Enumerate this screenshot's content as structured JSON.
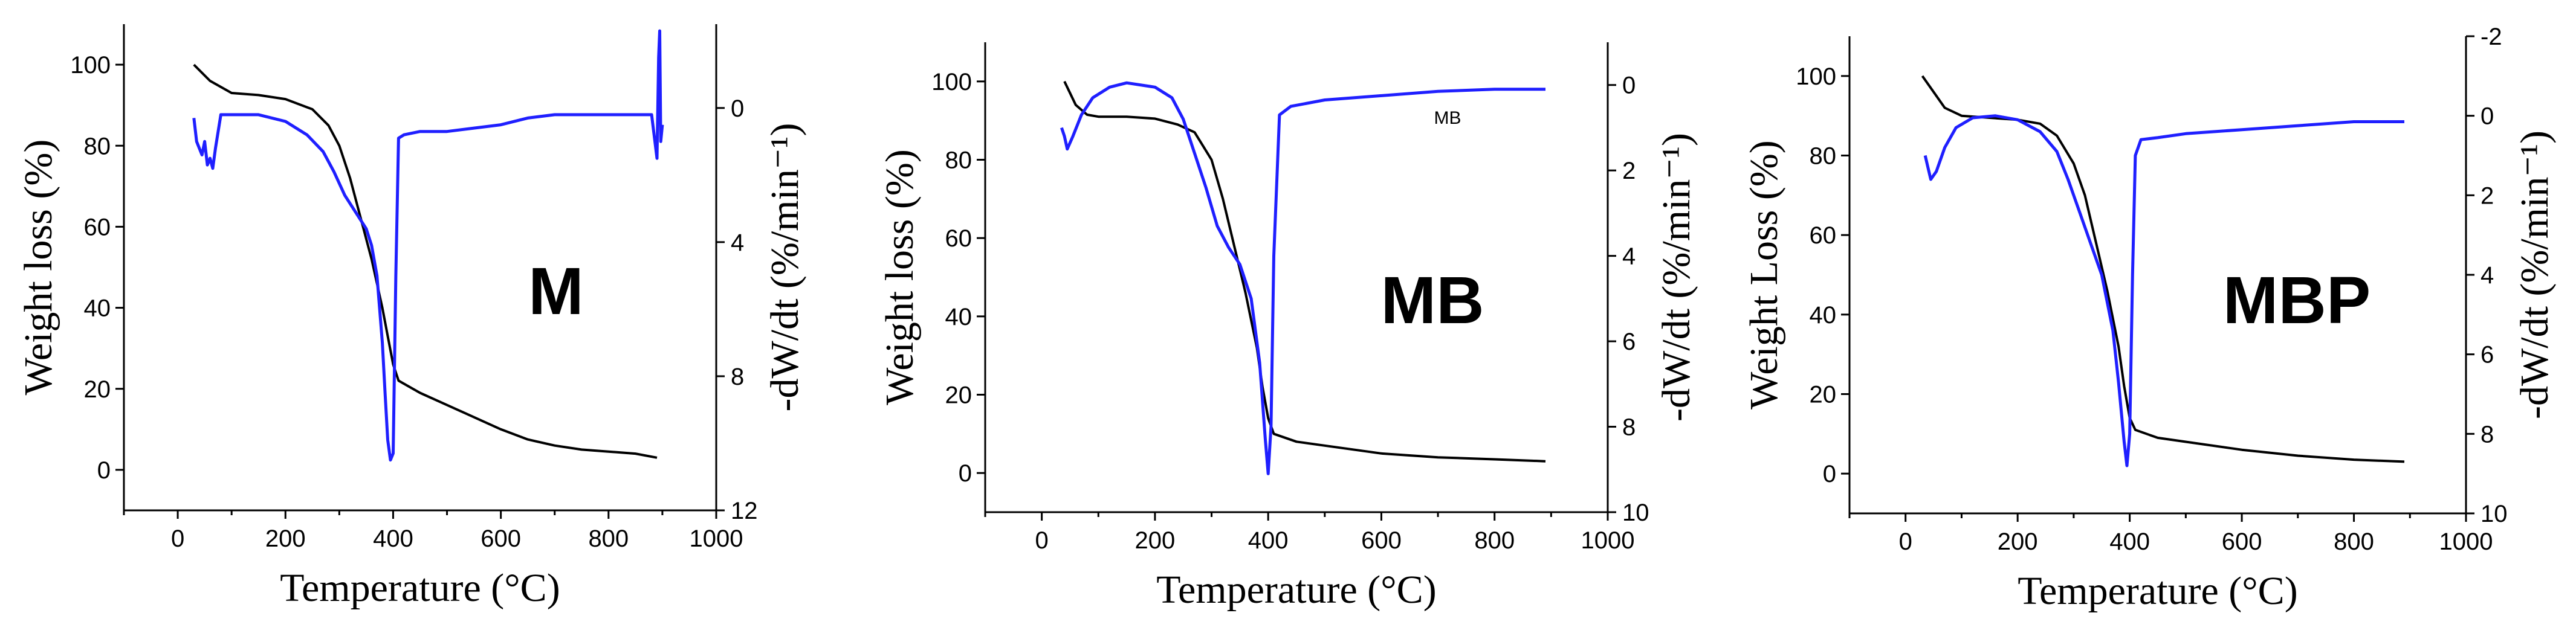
{
  "colors": {
    "weight_curve": "#000000",
    "dtg_curve": "#1f1fff"
  },
  "chart_data": [
    {
      "type": "line",
      "panel_label": "M",
      "annotation": "",
      "xlabel": "Temperature (°C)",
      "ylabel_left": "Weight loss (%)",
      "ylabel_right": "-dW/dt (%/min⁻¹)",
      "xlim": [
        -100,
        1000
      ],
      "ylim_left": [
        -10,
        110
      ],
      "ylim_right": [
        12,
        -2.5
      ],
      "x_ticks": [
        0,
        200,
        400,
        600,
        800,
        1000
      ],
      "x_tick_labels": [
        "0",
        "200",
        "400",
        "600",
        "800",
        "1000"
      ],
      "y_left_ticks": [
        0,
        20,
        40,
        60,
        80,
        100
      ],
      "y_left_tick_labels": [
        "0",
        "20",
        "40",
        "60",
        "80",
        "100"
      ],
      "y_right_ticks": [
        0,
        4,
        8,
        12
      ],
      "y_right_tick_labels": [
        "0",
        "4",
        "8",
        "12"
      ],
      "series": [
        {
          "name": "Weight",
          "axis": "left",
          "x": [
            30,
            60,
            100,
            150,
            200,
            250,
            280,
            300,
            320,
            340,
            360,
            380,
            390,
            400,
            410,
            450,
            500,
            550,
            600,
            650,
            700,
            750,
            800,
            850,
            890
          ],
          "y": [
            100,
            96,
            93,
            92.5,
            91.5,
            89,
            85,
            80,
            72,
            62,
            52,
            40,
            33,
            26,
            22,
            19,
            16,
            13,
            10,
            7.5,
            6,
            5,
            4.5,
            4,
            3
          ]
        },
        {
          "name": "DTG",
          "axis": "right",
          "x": [
            30,
            35,
            45,
            50,
            55,
            60,
            65,
            70,
            80,
            100,
            150,
            200,
            240,
            270,
            290,
            310,
            330,
            350,
            360,
            370,
            380,
            385,
            390,
            395,
            400,
            405,
            410,
            420,
            450,
            500,
            550,
            600,
            650,
            700,
            750,
            800,
            850,
            880,
            890,
            893,
            895,
            897,
            900
          ],
          "y": [
            0.3,
            1.0,
            1.4,
            1.0,
            1.7,
            1.5,
            1.8,
            1.2,
            0.2,
            0.2,
            0.2,
            0.4,
            0.8,
            1.3,
            1.9,
            2.6,
            3.1,
            3.6,
            4.1,
            5.0,
            7.0,
            8.5,
            9.9,
            10.5,
            10.3,
            5.0,
            0.9,
            0.8,
            0.7,
            0.7,
            0.6,
            0.5,
            0.3,
            0.2,
            0.2,
            0.2,
            0.2,
            0.2,
            1.5,
            -1.5,
            -2.3,
            1.0,
            0.5
          ]
        }
      ]
    },
    {
      "type": "line",
      "panel_label": "MB",
      "annotation": "MB",
      "xlabel": "Temperature (°C)",
      "ylabel_left": "Weight loss (%)",
      "ylabel_right": "-dW/dt (%/min⁻¹)",
      "xlim": [
        -100,
        1000
      ],
      "ylim_left": [
        -10,
        110
      ],
      "ylim_right": [
        10,
        -1
      ],
      "x_ticks": [
        0,
        200,
        400,
        600,
        800,
        1000
      ],
      "x_tick_labels": [
        "0",
        "200",
        "400",
        "600",
        "800",
        "1000"
      ],
      "y_left_ticks": [
        0,
        20,
        40,
        60,
        80,
        100
      ],
      "y_left_tick_labels": [
        "0",
        "20",
        "40",
        "60",
        "80",
        "100"
      ],
      "y_right_ticks": [
        0,
        2,
        4,
        6,
        8,
        10
      ],
      "y_right_tick_labels": [
        "0",
        "2",
        "4",
        "6",
        "8",
        "10"
      ],
      "series": [
        {
          "name": "Weight",
          "axis": "left",
          "x": [
            40,
            60,
            80,
            100,
            150,
            200,
            240,
            270,
            300,
            320,
            340,
            360,
            380,
            390,
            400,
            410,
            450,
            500,
            600,
            700,
            800,
            890
          ],
          "y": [
            100,
            94,
            91.5,
            91,
            91,
            90.5,
            89,
            87,
            80,
            70,
            58,
            46,
            32,
            22,
            14,
            10,
            8,
            7,
            5,
            4,
            3.5,
            3
          ]
        },
        {
          "name": "DTG",
          "axis": "right",
          "x": [
            35,
            40,
            45,
            55,
            70,
            90,
            120,
            150,
            200,
            230,
            250,
            270,
            290,
            310,
            330,
            350,
            370,
            385,
            395,
            400,
            405,
            410,
            420,
            440,
            500,
            600,
            700,
            800,
            890
          ],
          "y": [
            1.0,
            1.2,
            1.5,
            1.2,
            0.7,
            0.3,
            0.05,
            -0.05,
            0.05,
            0.3,
            0.8,
            1.6,
            2.4,
            3.3,
            3.8,
            4.2,
            5.0,
            6.5,
            8.3,
            9.1,
            8.0,
            4.0,
            0.7,
            0.5,
            0.35,
            0.25,
            0.15,
            0.1,
            0.1
          ]
        }
      ]
    },
    {
      "type": "line",
      "panel_label": "MBP",
      "annotation": "",
      "xlabel": "Temperature (°C)",
      "ylabel_left": "Weight Loss (%)",
      "ylabel_right": "-dW/dt (%/min⁻¹)",
      "xlim": [
        -100,
        1000
      ],
      "ylim_left": [
        -10,
        110
      ],
      "ylim_right": [
        10,
        -2
      ],
      "x_ticks": [
        0,
        200,
        400,
        600,
        800,
        1000
      ],
      "x_tick_labels": [
        "0",
        "200",
        "400",
        "600",
        "800",
        "1000"
      ],
      "y_left_ticks": [
        0,
        20,
        40,
        60,
        80,
        100
      ],
      "y_left_tick_labels": [
        "0",
        "20",
        "40",
        "60",
        "80",
        "100"
      ],
      "y_right_ticks": [
        -2,
        0,
        2,
        4,
        6,
        8,
        10
      ],
      "y_right_tick_labels": [
        "-2",
        "0",
        "2",
        "4",
        "6",
        "8",
        "10"
      ],
      "series": [
        {
          "name": "Weight",
          "axis": "left",
          "x": [
            30,
            50,
            70,
            100,
            150,
            200,
            240,
            270,
            300,
            320,
            340,
            360,
            380,
            390,
            400,
            410,
            450,
            500,
            600,
            700,
            800,
            890
          ],
          "y": [
            100,
            96,
            92,
            90,
            89.5,
            89,
            88,
            85,
            78,
            70,
            58,
            46,
            32,
            22,
            14,
            11,
            9,
            8,
            6,
            4.5,
            3.5,
            3
          ]
        },
        {
          "name": "DTG",
          "axis": "right",
          "x": [
            35,
            40,
            45,
            55,
            70,
            90,
            120,
            160,
            200,
            240,
            270,
            290,
            310,
            330,
            350,
            370,
            380,
            390,
            395,
            400,
            405,
            410,
            420,
            450,
            500,
            600,
            700,
            800,
            890
          ],
          "y": [
            1.0,
            1.3,
            1.6,
            1.4,
            0.8,
            0.3,
            0.05,
            0.0,
            0.1,
            0.4,
            0.9,
            1.6,
            2.4,
            3.2,
            4.0,
            5.4,
            6.7,
            8.2,
            8.8,
            8.0,
            4.0,
            1.0,
            0.6,
            0.55,
            0.45,
            0.35,
            0.25,
            0.15,
            0.15
          ]
        }
      ]
    }
  ]
}
